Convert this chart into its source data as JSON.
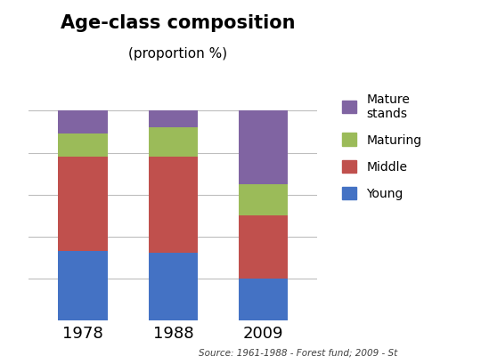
{
  "title": "Age-class composition",
  "subtitle": "(proportion %)",
  "categories": [
    "1978",
    "1988",
    "2009"
  ],
  "series": [
    {
      "label": "Young",
      "values": [
        33,
        32,
        20
      ],
      "color": "#4472C4"
    },
    {
      "label": "Middle",
      "values": [
        45,
        46,
        30
      ],
      "color": "#C0504D"
    },
    {
      "label": "Maturing",
      "values": [
        11,
        14,
        15
      ],
      "color": "#9BBB59"
    },
    {
      "label": "Mature\nstands",
      "values": [
        11,
        8,
        35
      ],
      "color": "#8064A2"
    }
  ],
  "ylim": [
    0,
    108
  ],
  "ytick_positions": [
    20,
    40,
    60,
    80,
    100
  ],
  "source_text": "Source: 1961-1988 - Forest fund; 2009 - St",
  "background_color": "#FFFFFF",
  "grid_color": "#BEBEBE",
  "bar_width": 0.55,
  "legend_fontsize": 10,
  "title_fontsize": 15,
  "subtitle_fontsize": 11,
  "xtick_fontsize": 13
}
